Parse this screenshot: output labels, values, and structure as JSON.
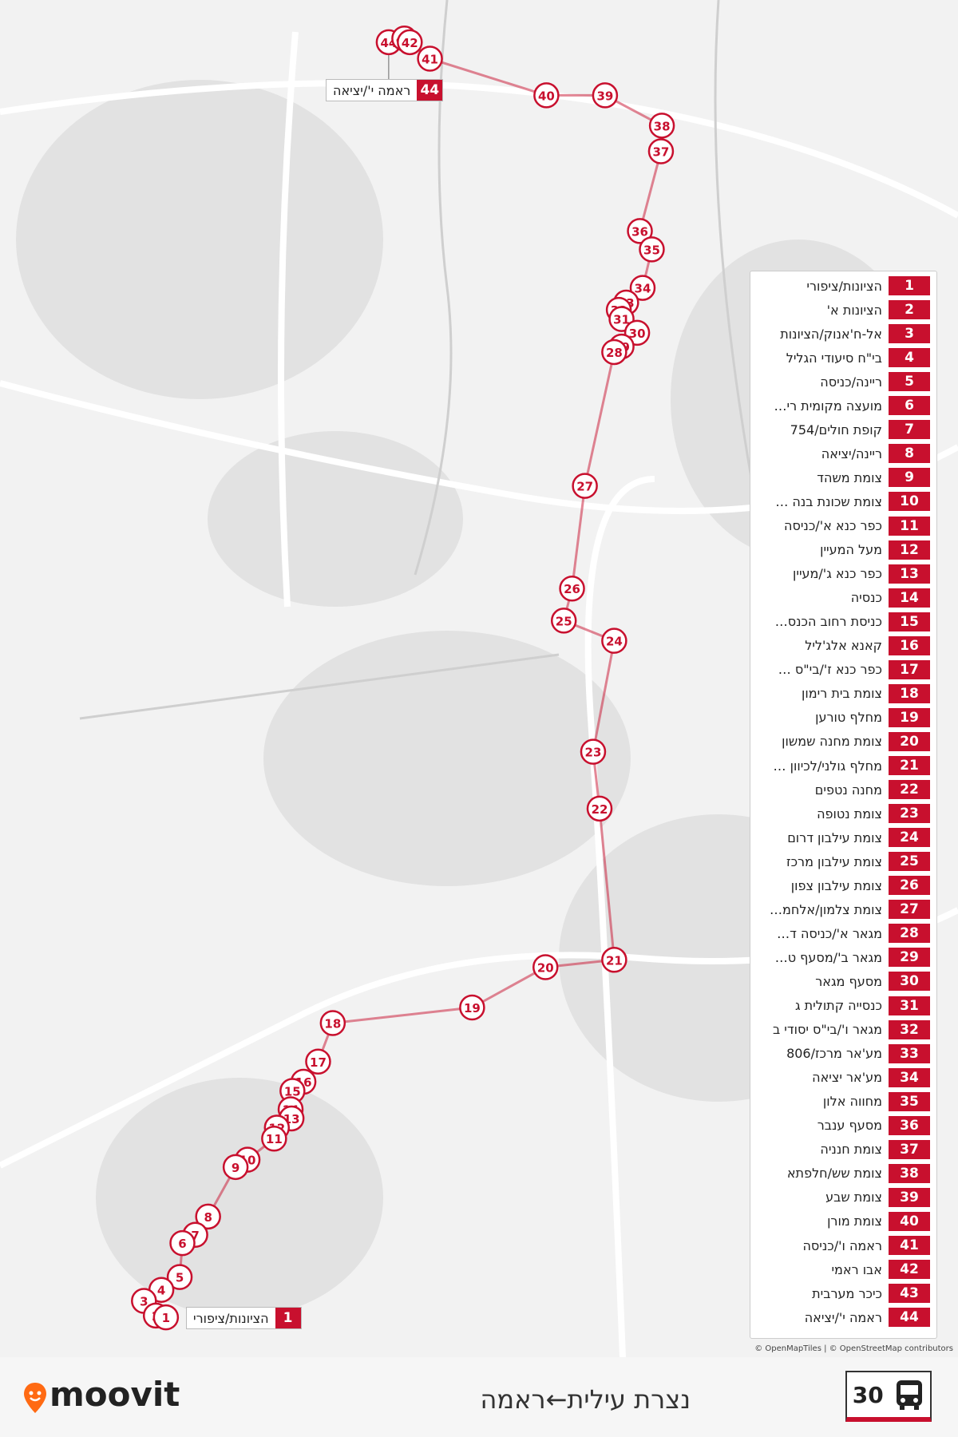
{
  "route": {
    "number": "30",
    "title": "נצרת עילית←ראמה"
  },
  "stops": [
    {
      "number": 1,
      "name": "הציונות/ציפורי"
    },
    {
      "number": 2,
      "name": "הציונות א'"
    },
    {
      "number": 3,
      "name": "אל-ח'אנוק/הציונות"
    },
    {
      "number": 4,
      "name": "בי\"ח סיעודי הגליל"
    },
    {
      "number": 5,
      "name": "ריינה/כניסה"
    },
    {
      "number": 6,
      "name": "מועצה מקומית רי…"
    },
    {
      "number": 7,
      "name": "קופת חולים/754"
    },
    {
      "number": 8,
      "name": "ריינה/יציאה"
    },
    {
      "number": 9,
      "name": "צומת משהד"
    },
    {
      "number": 10,
      "name": "צומת שכונת בנה …"
    },
    {
      "number": 11,
      "name": "כפר כנא א'/כניסה"
    },
    {
      "number": 12,
      "name": "מעל המעיין"
    },
    {
      "number": 13,
      "name": "כפר כנא ג'/מעיין"
    },
    {
      "number": 14,
      "name": "כנסיה"
    },
    {
      "number": 15,
      "name": "כניסת רחוב הכנס…"
    },
    {
      "number": 16,
      "name": "קאנא אלג'ליל"
    },
    {
      "number": 17,
      "name": "כפר כנא ז'/בי\"ס …"
    },
    {
      "number": 18,
      "name": "צומת בית רימון"
    },
    {
      "number": 19,
      "name": "מחלף טורען"
    },
    {
      "number": 20,
      "name": "צומת מחנה שמשון"
    },
    {
      "number": 21,
      "name": "מחלף גולני/לכיוון …"
    },
    {
      "number": 22,
      "name": "מחנה נטפים"
    },
    {
      "number": 23,
      "name": "צומת נטופה"
    },
    {
      "number": 24,
      "name": "צומת עילבון דרום"
    },
    {
      "number": 25,
      "name": "צומת עילבון מרכז"
    },
    {
      "number": 26,
      "name": "צומת עילבון צפון"
    },
    {
      "number": 27,
      "name": "צומת צלמון/אלחמ…"
    },
    {
      "number": 28,
      "name": "מגאר א'/כניסה ד…"
    },
    {
      "number": 29,
      "name": "מגאר ב'/מסעף ט…"
    },
    {
      "number": 30,
      "name": "מסעף מגאר"
    },
    {
      "number": 31,
      "name": "כנסייה קתולית ג"
    },
    {
      "number": 32,
      "name": "מגאר ו'/בי\"ס יסודי ב"
    },
    {
      "number": 33,
      "name": "מע'אר מרכז/806"
    },
    {
      "number": 34,
      "name": "מע'אר יציאה"
    },
    {
      "number": 35,
      "name": "מחווה אלון"
    },
    {
      "number": 36,
      "name": "מסעף ענבר"
    },
    {
      "number": 37,
      "name": "צומת חנניה"
    },
    {
      "number": 38,
      "name": "צומת שש/חלפתא"
    },
    {
      "number": 39,
      "name": "צומת שבע"
    },
    {
      "number": 40,
      "name": "צומת מורן"
    },
    {
      "number": 41,
      "name": "ראמה ו'/כניסה"
    },
    {
      "number": 42,
      "name": "אבו ראמי"
    },
    {
      "number": 43,
      "name": "כיכר מערבית"
    },
    {
      "number": 44,
      "name": "ראמה י'/יציאה"
    }
  ],
  "attribution": "© OpenMapTiles | © OpenStreetMap contributors",
  "brand": "moovit"
}
